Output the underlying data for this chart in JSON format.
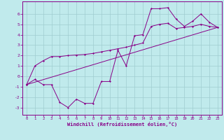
{
  "background_color": "#c0eaec",
  "grid_color": "#a0cdd0",
  "line_color": "#880088",
  "xlabel": "Windchill (Refroidissement éolien,°C)",
  "xlim": [
    -0.5,
    23.5
  ],
  "ylim": [
    -3.7,
    7.2
  ],
  "xticks": [
    0,
    1,
    2,
    3,
    4,
    5,
    6,
    7,
    8,
    9,
    10,
    11,
    12,
    13,
    14,
    15,
    16,
    17,
    18,
    19,
    20,
    21,
    22,
    23
  ],
  "yticks": [
    -3,
    -2,
    -1,
    0,
    1,
    2,
    3,
    4,
    5,
    6
  ],
  "series1_x": [
    0,
    1,
    2,
    3,
    4,
    5,
    6,
    7,
    8,
    9,
    10,
    11,
    12,
    13,
    14,
    15,
    16,
    17,
    18,
    19,
    20,
    21,
    22,
    23
  ],
  "series1_y": [
    -0.8,
    -0.3,
    -0.8,
    -0.8,
    -2.5,
    -3.0,
    -2.2,
    -2.6,
    -2.6,
    -0.5,
    -0.5,
    2.5,
    1.0,
    3.9,
    4.0,
    6.5,
    6.5,
    6.6,
    5.5,
    4.8,
    5.3,
    6.0,
    5.2,
    4.7
  ],
  "series2_x": [
    0,
    1,
    2,
    3,
    4,
    5,
    6,
    7,
    8,
    9,
    10,
    11,
    12,
    13,
    14,
    15,
    16,
    17,
    18,
    19,
    20,
    21,
    22,
    23
  ],
  "series2_y": [
    -0.8,
    1.0,
    1.5,
    1.9,
    1.9,
    2.0,
    2.05,
    2.1,
    2.2,
    2.35,
    2.5,
    2.65,
    2.8,
    3.0,
    3.2,
    4.8,
    5.0,
    5.1,
    4.6,
    4.7,
    4.8,
    5.0,
    4.8,
    4.7
  ],
  "series3_x": [
    0,
    23
  ],
  "series3_y": [
    -0.8,
    4.7
  ]
}
